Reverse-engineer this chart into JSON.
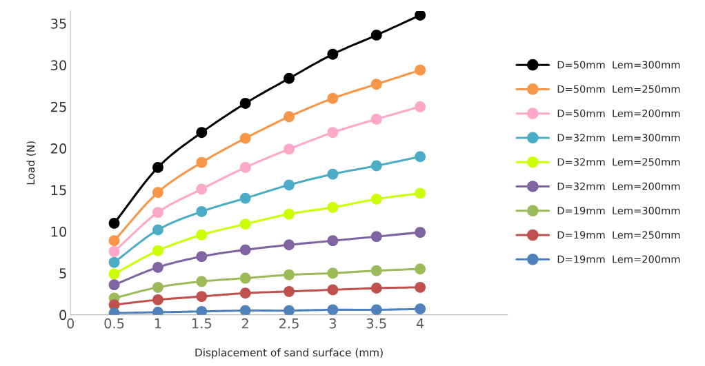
{
  "chart_data": {
    "type": "line",
    "xlabel": "Displacement of sand surface (mm)",
    "ylabel": "Load (N)",
    "x": [
      0.5,
      1,
      1.5,
      2,
      2.5,
      3,
      3.5,
      4
    ],
    "xlim": [
      0,
      5
    ],
    "xticks": [
      0,
      0.5,
      1,
      1.5,
      2,
      2.5,
      3,
      3.5,
      4
    ],
    "ylim": [
      0,
      36.5
    ],
    "yticks": [
      0,
      5,
      10,
      15,
      20,
      25,
      30,
      35
    ],
    "grid": false,
    "legend": "right",
    "marker": "circle",
    "line_style": "solid",
    "series": [
      {
        "name": "D=50mm  Lem=300mm",
        "color": "#000000",
        "values": [
          11.0,
          17.7,
          21.9,
          25.4,
          28.4,
          31.3,
          33.6,
          36.0
        ]
      },
      {
        "name": "D=50mm  Lem=250mm",
        "color": "#f79646",
        "values": [
          8.9,
          14.7,
          18.3,
          21.2,
          23.8,
          26.0,
          27.7,
          29.4
        ]
      },
      {
        "name": "D=50mm  Lem=200mm",
        "color": "#ffa7c8",
        "values": [
          7.6,
          12.3,
          15.1,
          17.7,
          19.9,
          21.9,
          23.5,
          25.0
        ]
      },
      {
        "name": "D=32mm  Lem=300mm",
        "color": "#4bacc6",
        "values": [
          6.3,
          10.2,
          12.4,
          14.0,
          15.6,
          16.9,
          17.9,
          19.0
        ]
      },
      {
        "name": "D=32mm  Lem=250mm",
        "color": "#ccff00",
        "values": [
          4.9,
          7.7,
          9.6,
          10.9,
          12.1,
          12.9,
          13.9,
          14.6
        ]
      },
      {
        "name": "D=32mm  Lem=200mm",
        "color": "#8064a2",
        "values": [
          3.6,
          5.7,
          7.0,
          7.8,
          8.4,
          8.9,
          9.4,
          9.9
        ]
      },
      {
        "name": "D=19mm  Lem=300mm",
        "color": "#9bbb59",
        "values": [
          2.0,
          3.3,
          4.0,
          4.4,
          4.8,
          5.0,
          5.3,
          5.5
        ]
      },
      {
        "name": "D=19mm  Lem=250mm",
        "color": "#c0504d",
        "values": [
          1.2,
          1.8,
          2.2,
          2.6,
          2.8,
          3.0,
          3.2,
          3.3
        ]
      },
      {
        "name": "D=19mm  Lem=200mm",
        "color": "#4f81bd",
        "values": [
          0.2,
          0.3,
          0.4,
          0.5,
          0.5,
          0.6,
          0.6,
          0.7
        ]
      }
    ]
  }
}
